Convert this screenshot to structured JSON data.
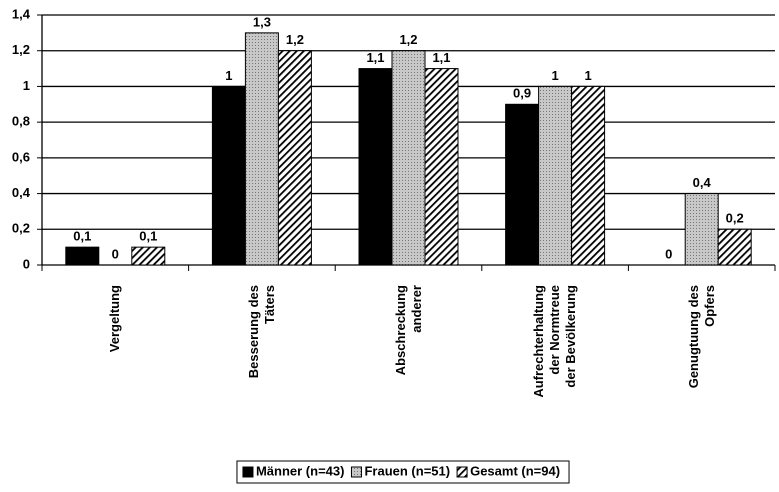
{
  "chart_data": {
    "type": "bar",
    "categories": [
      "Vergeltung",
      "Besserung des\nTäters",
      "Abschreckung\nanderer",
      "Aufrechterhaltung\nder Normtreue\nder Bevölkerung",
      "Genugtuung des\nOpfers"
    ],
    "series": [
      {
        "name": "Männer (n=43)",
        "color": "#000000",
        "pattern": "solid",
        "values": [
          0.1,
          1,
          1.1,
          0.9,
          0
        ],
        "value_labels": [
          "0,1",
          "1",
          "1,1",
          "0,9",
          "0"
        ]
      },
      {
        "name": "Frauen (n=51)",
        "color": "#b8b8b8",
        "pattern": "dots",
        "values": [
          0,
          1.3,
          1.2,
          1,
          0.4
        ],
        "value_labels": [
          "0",
          "1,3",
          "1,2",
          "1",
          "0,4"
        ]
      },
      {
        "name": "Gesamt (n=94)",
        "color": "#000000",
        "pattern": "hatch",
        "values": [
          0.1,
          1.2,
          1.1,
          1,
          0.2
        ],
        "value_labels": [
          "0,1",
          "1,2",
          "1,1",
          "1",
          "0,2"
        ]
      }
    ],
    "ylim": [
      0,
      1.4
    ],
    "yticks": [
      0,
      {
        "value": 0.2,
        "label": "0,2"
      },
      {
        "value": 0.4,
        "label": "0,4"
      },
      {
        "value": 0.6,
        "label": "0,6"
      },
      {
        "value": 0.8,
        "label": "0,8"
      },
      1,
      {
        "value": 1.2,
        "label": "1,2"
      },
      {
        "value": 1.4,
        "label": "1,4"
      }
    ],
    "grid": true
  }
}
